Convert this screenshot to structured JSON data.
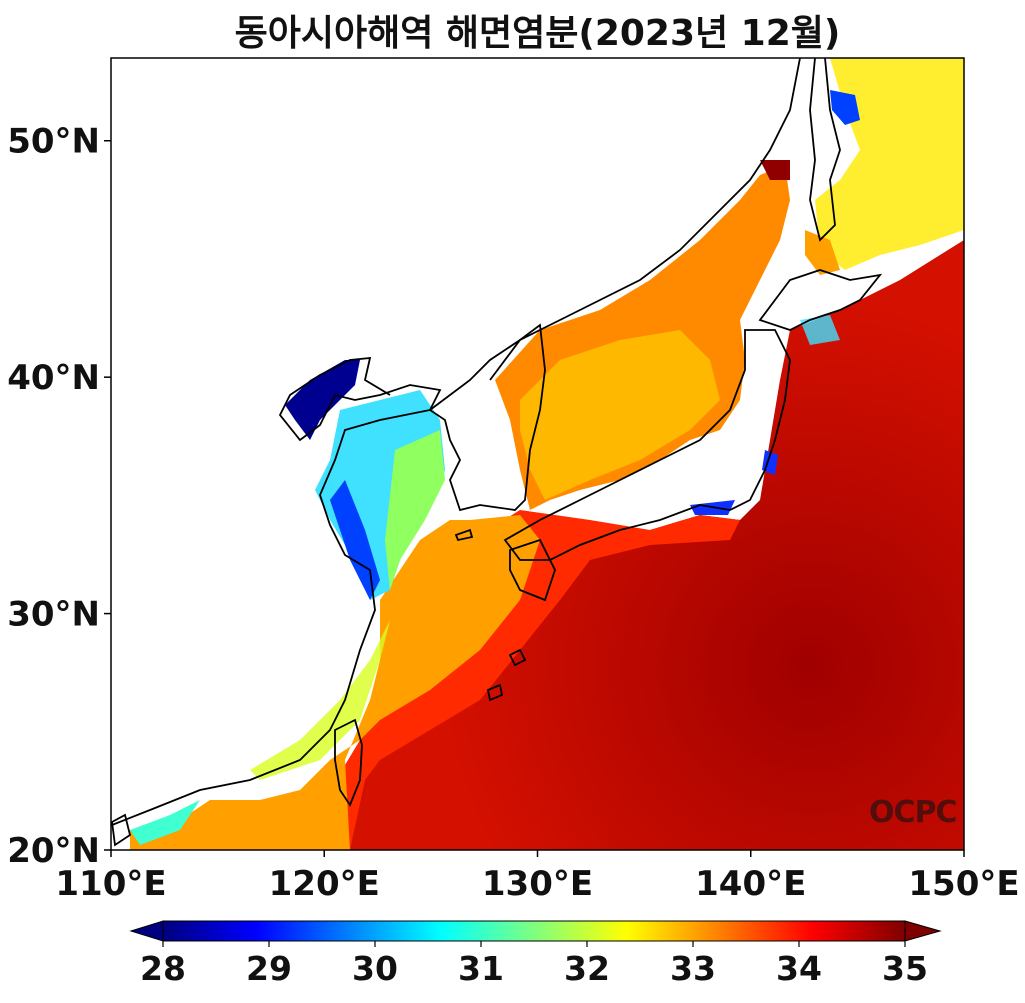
{
  "title": "동아시아해역 해면염분(2023년 12월)",
  "watermark": "OCPC",
  "map": {
    "lon_range": [
      110,
      150
    ],
    "lat_range": [
      20,
      53.5
    ],
    "lon_ticks": [
      "110°E",
      "120°E",
      "130°E",
      "140°E",
      "150°E"
    ],
    "lat_ticks": [
      "20°N",
      "30°N",
      "40°N",
      "50°N"
    ],
    "lat_tick_values": [
      20,
      30,
      40,
      50
    ]
  },
  "colorbar": {
    "min": 28,
    "max": 35,
    "labels": [
      "28",
      "29",
      "30",
      "31",
      "32",
      "33",
      "34",
      "35"
    ],
    "colormap": "jet",
    "extend": "both",
    "colors": [
      "#00007f",
      "#0000ff",
      "#007fff",
      "#00ffff",
      "#7fff7f",
      "#ffff00",
      "#ff7f00",
      "#ff0000",
      "#7f0000"
    ]
  }
}
